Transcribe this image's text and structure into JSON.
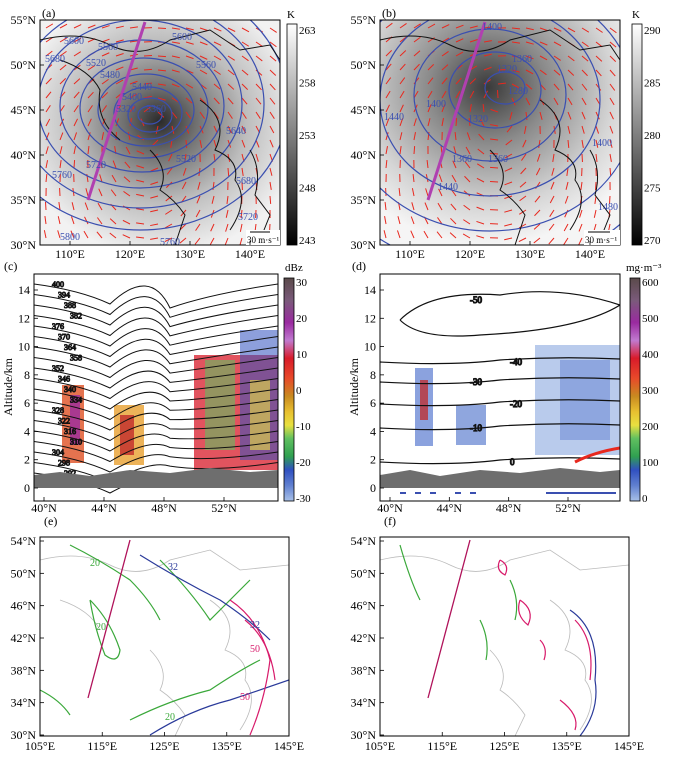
{
  "panels": {
    "a": {
      "tag": "(a)",
      "cbar_unit": "K",
      "cbar_ticks": [
        "263",
        "258",
        "253",
        "248",
        "243"
      ],
      "lat_ticks": [
        "55°N",
        "50°N",
        "45°N",
        "40°N",
        "35°N",
        "30°N"
      ],
      "lon_ticks": [
        "110°E",
        "120°E",
        "130°E",
        "140°E"
      ],
      "contour_labels": [
        "5600",
        "5560",
        "5680",
        "5520",
        "5480",
        "5440",
        "5400",
        "5360",
        "5320",
        "5760",
        "5800",
        "5720",
        "5600",
        "5640",
        "5520",
        "5560",
        "5680",
        "5720",
        "5760"
      ],
      "wind_ref": "30 m·s⁻¹"
    },
    "b": {
      "tag": "(b)",
      "cbar_unit": "K",
      "cbar_ticks": [
        "290",
        "285",
        "280",
        "275",
        "270"
      ],
      "lat_ticks": [
        "55°N",
        "50°N",
        "45°N",
        "40°N",
        "35°N",
        "30°N"
      ],
      "lon_ticks": [
        "110°E",
        "120°E",
        "130°E",
        "140°E"
      ],
      "contour_labels": [
        "1400",
        "1360",
        "1320",
        "1280",
        "1400",
        "1440",
        "1360",
        "1320",
        "1360",
        "1400",
        "1440",
        "1480"
      ],
      "wind_ref": "30 m·s⁻¹"
    },
    "c": {
      "tag": "(c)",
      "cbar_unit": "dBz",
      "cbar_ticks": [
        "30",
        "20",
        "10",
        "0",
        "-10",
        "-20",
        "-30"
      ],
      "ylabel": "Altitude/km",
      "y_ticks": [
        "14",
        "12",
        "10",
        "8",
        "6",
        "4",
        "2",
        "0"
      ],
      "x_ticks": [
        "40°N",
        "44°N",
        "48°N",
        "52°N"
      ],
      "theta_labels": [
        "400",
        "394",
        "388",
        "382",
        "376",
        "370",
        "364",
        "358",
        "352",
        "346",
        "340",
        "334",
        "328",
        "322",
        "316",
        "310",
        "304",
        "298",
        "292"
      ]
    },
    "d": {
      "tag": "(d)",
      "cbar_unit": "mg·m⁻³",
      "cbar_ticks": [
        "600",
        "500",
        "400",
        "300",
        "200",
        "100",
        "0"
      ],
      "ylabel": "Altitude/km",
      "y_ticks": [
        "14",
        "12",
        "10",
        "8",
        "6",
        "4",
        "2",
        "0"
      ],
      "x_ticks": [
        "40°N",
        "44°N",
        "48°N",
        "52°N"
      ],
      "temp_labels": [
        "-50",
        "-40",
        "-30",
        "-20",
        "-10",
        "0"
      ]
    },
    "e": {
      "tag": "(e)",
      "lat_ticks": [
        "54°N",
        "50°N",
        "46°N",
        "42°N",
        "38°N",
        "34°N",
        "30°N"
      ],
      "lon_ticks": [
        "105°E",
        "115°E",
        "125°E",
        "135°E",
        "145°E"
      ],
      "contour_labels": [
        "20",
        "32",
        "50"
      ]
    },
    "f": {
      "tag": "(f)",
      "lat_ticks": [
        "54°N",
        "50°N",
        "46°N",
        "42°N",
        "38°N",
        "34°N",
        "30°N"
      ],
      "lon_ticks": [
        "105°E",
        "115°E",
        "125°E",
        "135°E",
        "145°E"
      ]
    }
  },
  "colors": {
    "line_blue": "#3a4fb0",
    "wind_red": "#e8281e",
    "section_magenta": "#b040b0",
    "contour_green": "#3aa83a",
    "contour_pink": "#d81b6b",
    "contour_navy": "#2a3a9a"
  },
  "chart_data": [
    {
      "type": "heatmap",
      "panel": "a",
      "title": "",
      "xlabel": "",
      "ylabel": "",
      "xlim": [
        105,
        145
      ],
      "ylim": [
        30,
        55
      ],
      "colorbar": {
        "label": "K",
        "range": [
          243,
          263
        ]
      },
      "series": [
        {
          "name": "",
          "values": [
            5320,
            5360,
            5400,
            5440,
            5480,
            5520,
            5560,
            5600,
            5640,
            5680,
            5720,
            5760,
            5800
          ]
        }
      ]
    },
    {
      "type": "heatmap",
      "panel": "b",
      "title": "",
      "xlabel": "",
      "ylabel": "",
      "xlim": [
        105,
        145
      ],
      "ylim": [
        30,
        55
      ],
      "colorbar": {
        "label": "K",
        "range": [
          270,
          290
        ]
      },
      "series": [
        {
          "name": "",
          "values": [
            1280,
            1320,
            1360,
            1400,
            1440,
            1480
          ]
        }
      ]
    },
    {
      "type": "heatmap",
      "panel": "c",
      "title": "",
      "xlabel": "",
      "ylabel": "Altitude/km",
      "xlim": [
        39,
        55
      ],
      "ylim": [
        -1,
        15
      ],
      "colorbar": {
        "label": "dBz",
        "range": [
          -30,
          30
        ]
      },
      "series": [
        {
          "name": "",
          "values": [
            292,
            298,
            304,
            310,
            316,
            322,
            328,
            334,
            340,
            346,
            352,
            358,
            364,
            370,
            376,
            382,
            388,
            394,
            400
          ]
        }
      ]
    },
    {
      "type": "heatmap",
      "panel": "d",
      "title": "",
      "xlabel": "",
      "ylabel": "Altitude/km",
      "xlim": [
        39,
        55
      ],
      "ylim": [
        -1,
        15
      ],
      "colorbar": {
        "label": "mg·m⁻³",
        "range": [
          0,
          600
        ]
      },
      "series": [
        {
          "name": "",
          "values": [
            -50,
            -40,
            -30,
            -20,
            -10,
            0
          ]
        }
      ]
    },
    {
      "type": "heatmap",
      "panel": "e",
      "title": "",
      "xlabel": "",
      "ylabel": "",
      "xlim": [
        105,
        145
      ],
      "ylim": [
        30,
        55
      ],
      "series": [
        {
          "name": "",
          "values": [
            20,
            32,
            50
          ]
        }
      ]
    },
    {
      "type": "heatmap",
      "panel": "f",
      "title": "",
      "xlabel": "",
      "ylabel": "",
      "xlim": [
        105,
        145
      ],
      "ylim": [
        30,
        55
      ],
      "series": []
    }
  ]
}
